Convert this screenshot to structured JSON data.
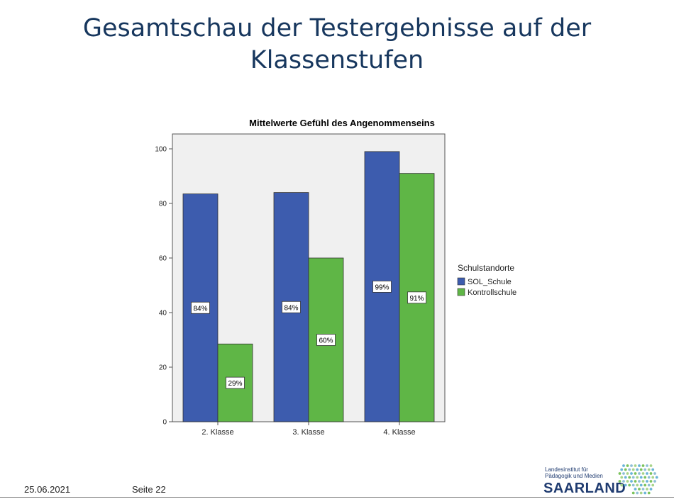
{
  "slide": {
    "title_line1": "Gesamtschau  der Testergebnisse auf der",
    "title_line2": "Klassenstufen"
  },
  "footer": {
    "date": "25.06.2021",
    "page": "Seite 22"
  },
  "logo": {
    "line1": "Landesinstitut für",
    "line2": "Pädagogik und Medien",
    "name": "SAARLAND"
  },
  "colors": {
    "title": "#17375e",
    "plot_background": "#f0f0f0",
    "sol_schule": "#3d5cae",
    "kontrollschule": "#5fb646"
  },
  "chart_data": {
    "type": "bar",
    "title": "Mittelwerte Gefühl des Angenommenseins",
    "xlabel": "",
    "ylabel": "",
    "categories": [
      "2. Klasse",
      "3. Klasse",
      "4. Klasse"
    ],
    "ylim": [
      0,
      100
    ],
    "yticks": [
      0,
      20,
      40,
      60,
      80,
      100
    ],
    "grid": false,
    "legend_title": "Schulstandorte",
    "legend_position": "right",
    "series": [
      {
        "name": "SOL_Schule",
        "values": [
          83.5,
          84,
          99
        ],
        "labels": [
          "84%",
          "84%",
          "99%"
        ],
        "color": "#3d5cae"
      },
      {
        "name": "Kontrollschule",
        "values": [
          28.5,
          60,
          91
        ],
        "labels": [
          "29%",
          "60%",
          "91%"
        ],
        "color": "#5fb646"
      }
    ]
  }
}
